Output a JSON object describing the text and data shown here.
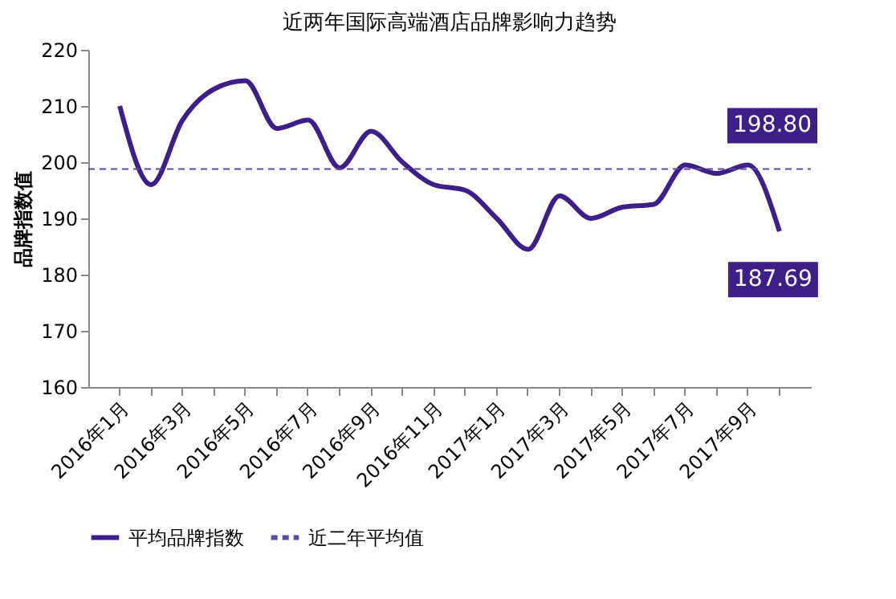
{
  "chart_data": {
    "type": "line",
    "title": "近两年国际高端酒店品牌影响力趋势",
    "ylabel": "品牌指数值",
    "categories": [
      "2016年1月",
      null,
      "2016年3月",
      null,
      "2016年5月",
      null,
      "2016年7月",
      null,
      "2016年9月",
      null,
      "2016年11月",
      null,
      "2017年1月",
      null,
      "2017年3月",
      null,
      "2017年5月",
      null,
      "2017年7月",
      null,
      "2017年9月",
      null
    ],
    "series": [
      {
        "name": "平均品牌指数",
        "color": "#3d1f87",
        "values": [
          210,
          196,
          207.5,
          213,
          214.5,
          206,
          207.5,
          199,
          205.5,
          200,
          196,
          195,
          190,
          184.5,
          194,
          190,
          192,
          192.5,
          199.5,
          198,
          199.5,
          187.69
        ],
        "value_labels": [
          null,
          null,
          null,
          null,
          null,
          null,
          null,
          null,
          null,
          null,
          null,
          null,
          null,
          null,
          null,
          null,
          null,
          null,
          null,
          null,
          null,
          "187.69"
        ]
      }
    ],
    "ref_lines": [
      {
        "axis": "y",
        "value": 198.8,
        "label": "近二年平均值",
        "color": "#5b4a9e",
        "line_style": "dashed"
      }
    ],
    "annotations": [
      {
        "text": "198.80",
        "y": 198.8
      }
    ],
    "ylim": [
      160,
      220
    ],
    "yticks": [
      160,
      170,
      180,
      190,
      200,
      210,
      220
    ],
    "grid": false,
    "legend": "bottom",
    "line_style": "solid",
    "marker": "none"
  }
}
